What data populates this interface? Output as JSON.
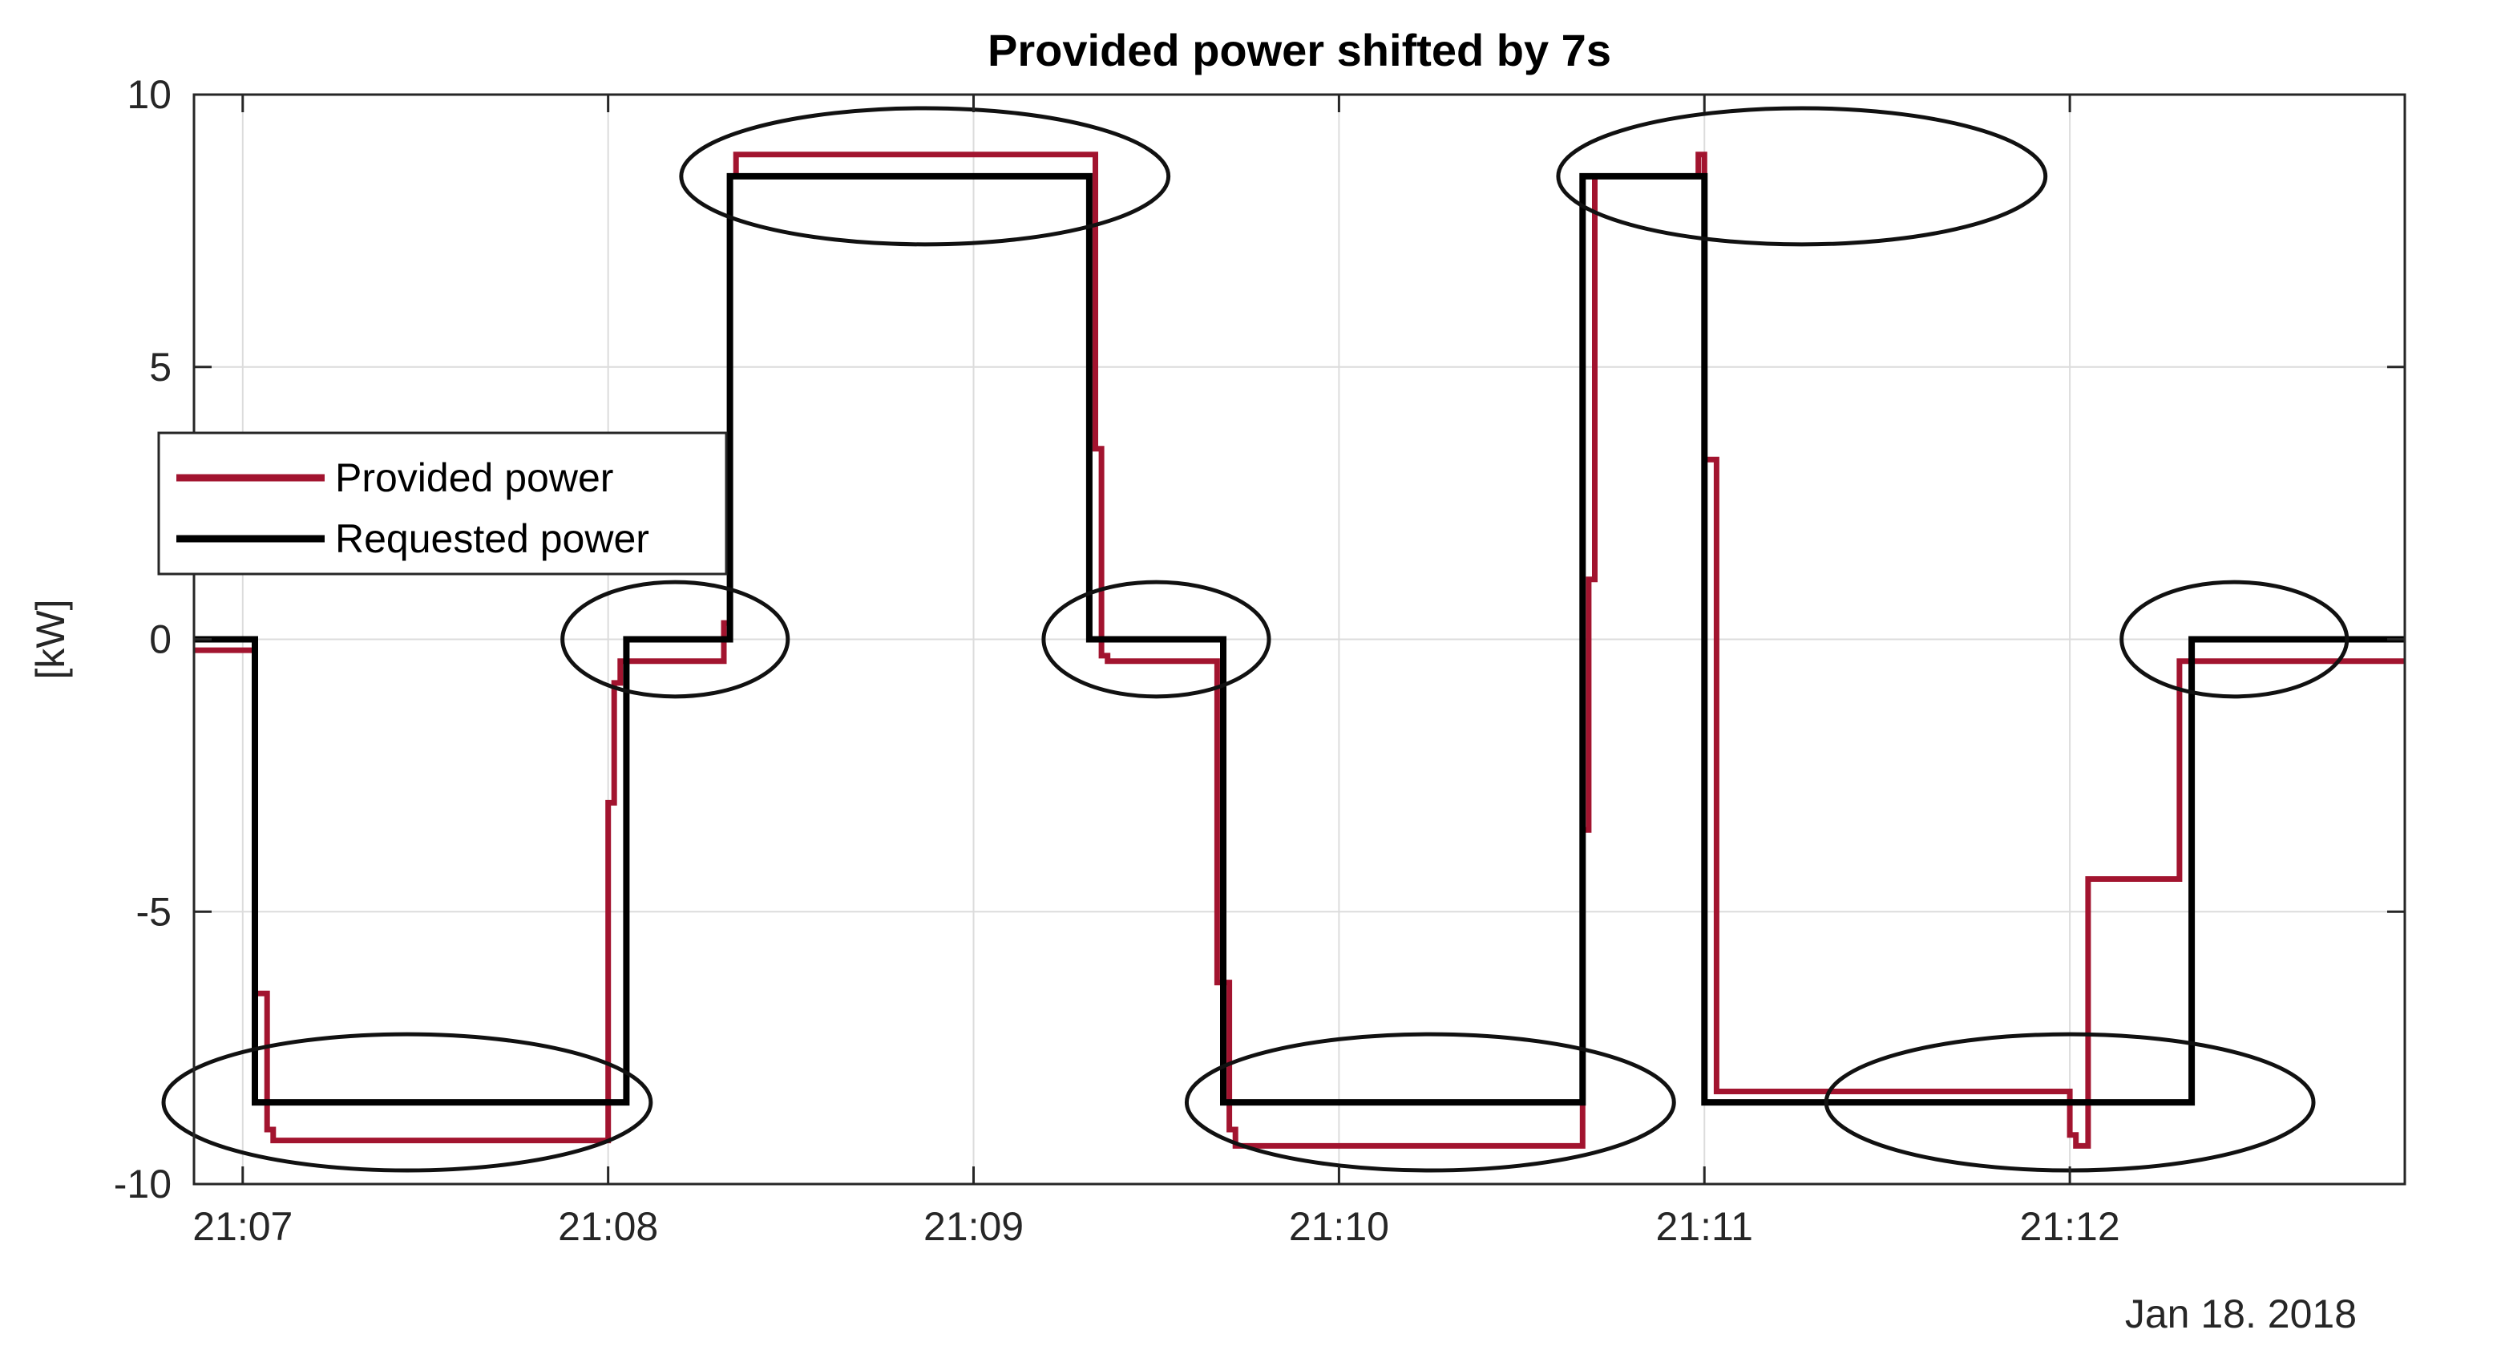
{
  "chart_data": {
    "type": "line",
    "title": "Provided power shifted by 7s",
    "ylabel": "[kW]",
    "xlabel": "",
    "date_label": "Jan 18. 2018",
    "x_unit": "seconds after 21:07:00",
    "xlim": [
      -8,
      355
    ],
    "ylim": [
      -10,
      10
    ],
    "x_ticks": [
      0,
      60,
      120,
      180,
      240,
      300
    ],
    "x_tick_labels": [
      "21:07",
      "21:08",
      "21:09",
      "21:10",
      "21:11",
      "21:12"
    ],
    "y_ticks": [
      -10,
      -5,
      0,
      5,
      10
    ],
    "y_tick_labels": [
      "-10",
      "-5",
      "0",
      "5",
      "10"
    ],
    "grid": true,
    "legend_position": "upper-left",
    "series": [
      {
        "name": "Provided power",
        "color": "#a2142f",
        "x": [
          -8,
          2,
          2,
          4,
          4,
          5,
          5,
          60,
          60,
          61,
          61,
          62,
          62,
          79,
          79,
          80,
          80,
          81,
          81,
          140,
          140,
          141,
          141,
          142,
          142,
          160,
          160,
          162,
          162,
          163,
          163,
          220,
          220,
          221,
          221,
          222,
          222,
          239,
          239,
          240,
          240,
          242,
          242,
          300,
          300,
          301,
          301,
          303,
          303,
          318,
          318,
          320,
          320,
          355
        ],
        "y": [
          -0.2,
          -0.2,
          -6.5,
          -6.5,
          -9.0,
          -9.0,
          -9.2,
          -9.2,
          -3.0,
          -3.0,
          -0.8,
          -0.8,
          -0.4,
          -0.4,
          0.3,
          0.3,
          8.5,
          8.5,
          8.9,
          8.9,
          3.5,
          3.5,
          -0.3,
          -0.3,
          -0.4,
          -0.4,
          -6.3,
          -6.3,
          -9.0,
          -9.0,
          -9.3,
          -9.3,
          -3.5,
          -3.5,
          1.1,
          1.1,
          8.5,
          8.5,
          8.9,
          8.9,
          3.3,
          3.3,
          -8.3,
          -8.3,
          -9.1,
          -9.1,
          -9.3,
          -9.3,
          -4.4,
          -4.4,
          -0.4,
          -0.4,
          -0.4,
          -0.4
        ]
      },
      {
        "name": "Requested power",
        "color": "#000000",
        "x": [
          -8,
          2,
          2,
          63,
          63,
          80,
          80,
          139,
          139,
          161,
          161,
          220,
          220,
          240,
          240,
          299,
          299,
          320,
          320,
          355
        ],
        "y": [
          0,
          0,
          -8.5,
          -8.5,
          0,
          0,
          8.5,
          8.5,
          0,
          0,
          -8.5,
          -8.5,
          8.5,
          8.5,
          -8.5,
          -8.5,
          -8.5,
          -8.5,
          0,
          0
        ]
      }
    ],
    "annotations": [
      {
        "type": "ellipse",
        "cx": 27,
        "cy": -8.5,
        "rx": 40,
        "ry": 1.25
      },
      {
        "type": "ellipse",
        "cx": 71,
        "cy": 0,
        "rx": 18.5,
        "ry": 1.05
      },
      {
        "type": "ellipse",
        "cx": 112,
        "cy": 8.5,
        "rx": 40,
        "ry": 1.25
      },
      {
        "type": "ellipse",
        "cx": 150,
        "cy": 0,
        "rx": 18.5,
        "ry": 1.05
      },
      {
        "type": "ellipse",
        "cx": 195,
        "cy": -8.5,
        "rx": 40,
        "ry": 1.25
      },
      {
        "type": "ellipse",
        "cx": 256,
        "cy": 8.5,
        "rx": 40,
        "ry": 1.25
      },
      {
        "type": "ellipse",
        "cx": 300,
        "cy": -8.5,
        "rx": 40,
        "ry": 1.25
      },
      {
        "type": "ellipse",
        "cx": 327,
        "cy": 0,
        "rx": 18.5,
        "ry": 1.05
      }
    ]
  }
}
